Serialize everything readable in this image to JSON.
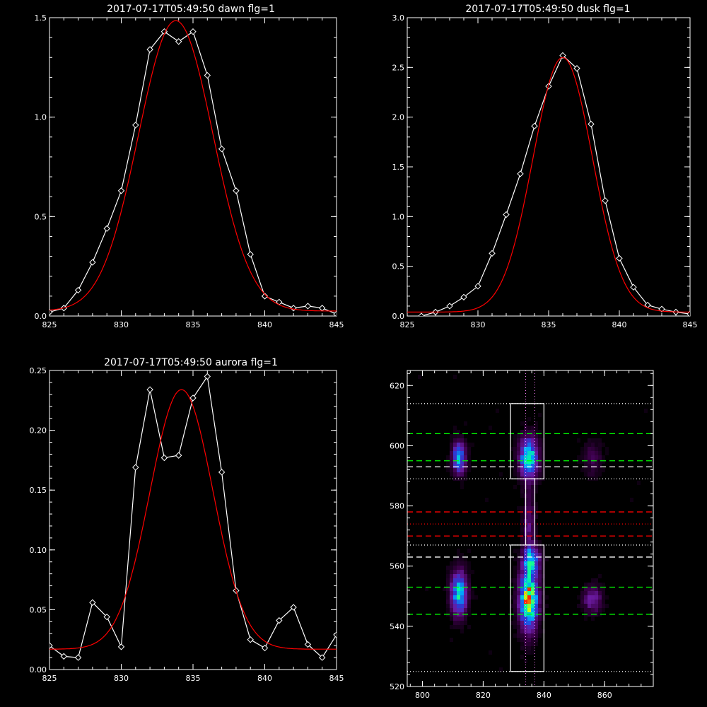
{
  "chart_data": [
    {
      "id": "dawn",
      "type": "line",
      "title": "2017-07-17T05:49:50 dawn flg=1",
      "xlim": [
        825,
        845
      ],
      "ylim": [
        0,
        1.5
      ],
      "xticks": [
        825,
        830,
        835,
        840,
        845
      ],
      "ytick_labels": [
        "0.0",
        "0.5",
        "1.0",
        "1.5"
      ],
      "series": [
        {
          "color": "#ffffff",
          "markers": "diamond",
          "x": [
            825,
            826,
            827,
            828,
            829,
            830,
            831,
            832,
            833,
            834,
            835,
            836,
            837,
            838,
            839,
            840,
            841,
            842,
            843,
            844,
            845
          ],
          "y": [
            0.02,
            0.04,
            0.13,
            0.27,
            0.44,
            0.63,
            0.96,
            1.34,
            1.43,
            1.38,
            1.43,
            1.21,
            0.84,
            0.63,
            0.31,
            0.1,
            0.07,
            0.04,
            0.05,
            0.04,
            0.01
          ]
        },
        {
          "color": "#ff0000",
          "fit": "gaussian",
          "amplitude": 1.46,
          "center": 833.8,
          "sigma": 2.6,
          "offset": 0.025
        }
      ]
    },
    {
      "id": "dusk",
      "type": "line",
      "title": "2017-07-17T05:49:50 dusk flg=1",
      "xlim": [
        825,
        845
      ],
      "ylim": [
        0,
        3.0
      ],
      "xticks": [
        825,
        830,
        835,
        840,
        845
      ],
      "ytick_labels": [
        "0.0",
        "0.5",
        "1.0",
        "1.5",
        "2.0",
        "2.5",
        "3.0"
      ],
      "series": [
        {
          "color": "#ffffff",
          "markers": "diamond",
          "x": [
            826,
            827,
            828,
            829,
            830,
            831,
            832,
            833,
            834,
            835,
            836,
            837,
            838,
            839,
            840,
            841,
            842,
            843,
            844,
            845
          ],
          "y": [
            0.0,
            0.04,
            0.1,
            0.19,
            0.3,
            0.63,
            1.02,
            1.43,
            1.91,
            2.31,
            2.62,
            2.49,
            1.93,
            1.16,
            0.58,
            0.29,
            0.11,
            0.07,
            0.04,
            0.02
          ]
        },
        {
          "color": "#ff0000",
          "fit": "gaussian",
          "amplitude": 2.56,
          "center": 836.0,
          "sigma": 2.1,
          "offset": 0.04
        }
      ]
    },
    {
      "id": "aurora",
      "type": "line",
      "title": "2017-07-17T05:49:50 aurora flg=1",
      "xlim": [
        825,
        845
      ],
      "ylim": [
        0,
        0.25
      ],
      "xticks": [
        825,
        830,
        835,
        840,
        845
      ],
      "ytick_labels": [
        "0.00",
        "0.05",
        "0.10",
        "0.15",
        "0.20",
        "0.25"
      ],
      "series": [
        {
          "color": "#ffffff",
          "markers": "diamond",
          "x": [
            825,
            826,
            827,
            828,
            829,
            830,
            831,
            832,
            833,
            834,
            835,
            836,
            837,
            838,
            839,
            840,
            841,
            842,
            843,
            844,
            845
          ],
          "y": [
            0.02,
            0.011,
            0.01,
            0.056,
            0.044,
            0.019,
            0.169,
            0.234,
            0.177,
            0.179,
            0.227,
            0.245,
            0.165,
            0.066,
            0.025,
            0.018,
            0.041,
            0.052,
            0.021,
            0.01,
            0.029
          ]
        },
        {
          "color": "#ff0000",
          "fit": "gaussian",
          "amplitude": 0.217,
          "center": 834.2,
          "sigma": 2.2,
          "offset": 0.017
        }
      ]
    },
    {
      "id": "image",
      "type": "heatmap",
      "xlim": [
        795,
        876
      ],
      "ylim": [
        520,
        625
      ],
      "xticks": [
        800,
        820,
        840,
        860
      ],
      "yticks": [
        520,
        540,
        560,
        580,
        600,
        620
      ],
      "colormap": [
        "#000000",
        "#3a0048",
        "#6a1aa0",
        "#2a3cd8",
        "#00a8ff",
        "#00ffa0",
        "#c8ff00",
        "#ff2000"
      ],
      "blobs": [
        {
          "x": 835,
          "y": 596,
          "sx": 2.0,
          "sy": 4.5,
          "amp": 0.72
        },
        {
          "x": 835,
          "y": 549,
          "sx": 2.0,
          "sy": 6.5,
          "amp": 0.95
        },
        {
          "x": 836,
          "y": 562,
          "sx": 1.8,
          "sy": 3.0,
          "amp": 0.55
        },
        {
          "x": 812,
          "y": 596,
          "sx": 1.5,
          "sy": 3.5,
          "amp": 0.58
        },
        {
          "x": 812,
          "y": 551,
          "sx": 1.8,
          "sy": 5.0,
          "amp": 0.62
        },
        {
          "x": 856,
          "y": 549,
          "sx": 2.0,
          "sy": 3.0,
          "amp": 0.28
        },
        {
          "x": 856,
          "y": 596,
          "sx": 2.0,
          "sy": 4.0,
          "amp": 0.13
        },
        {
          "x": 835,
          "y": 574,
          "sx": 1.2,
          "sy": 8.0,
          "amp": 0.22
        }
      ],
      "boxes": [
        {
          "x0": 829,
          "x1": 840,
          "y0": 589,
          "y1": 614
        },
        {
          "x0": 829,
          "x1": 840,
          "y0": 525,
          "y1": 567
        },
        {
          "x0": 834,
          "x1": 837,
          "y0": 567,
          "y1": 589
        }
      ],
      "hlines": [
        {
          "y": 614,
          "color": "#ffffff",
          "style": "dotted"
        },
        {
          "y": 604,
          "color": "#00ff00",
          "style": "dashed"
        },
        {
          "y": 595,
          "color": "#00ff00",
          "style": "dashed"
        },
        {
          "y": 593,
          "color": "#ffffff",
          "style": "dashed"
        },
        {
          "y": 589,
          "color": "#ffffff",
          "style": "dotted"
        },
        {
          "y": 578,
          "color": "#ff0000",
          "style": "dashed"
        },
        {
          "y": 574,
          "color": "#ff0000",
          "style": "dotted"
        },
        {
          "y": 570,
          "color": "#ff0000",
          "style": "dashed"
        },
        {
          "y": 567,
          "color": "#ffffff",
          "style": "dotted"
        },
        {
          "y": 563,
          "color": "#ffffff",
          "style": "dashed"
        },
        {
          "y": 553,
          "color": "#00ff00",
          "style": "dashed"
        },
        {
          "y": 544,
          "color": "#00ff00",
          "style": "dashed"
        },
        {
          "y": 525,
          "color": "#ffffff",
          "style": "dotted"
        }
      ],
      "vlines": [
        {
          "x": 834,
          "color": "#ff80ff",
          "style": "dotted"
        },
        {
          "x": 837,
          "color": "#ff80ff",
          "style": "dotted"
        }
      ]
    }
  ]
}
